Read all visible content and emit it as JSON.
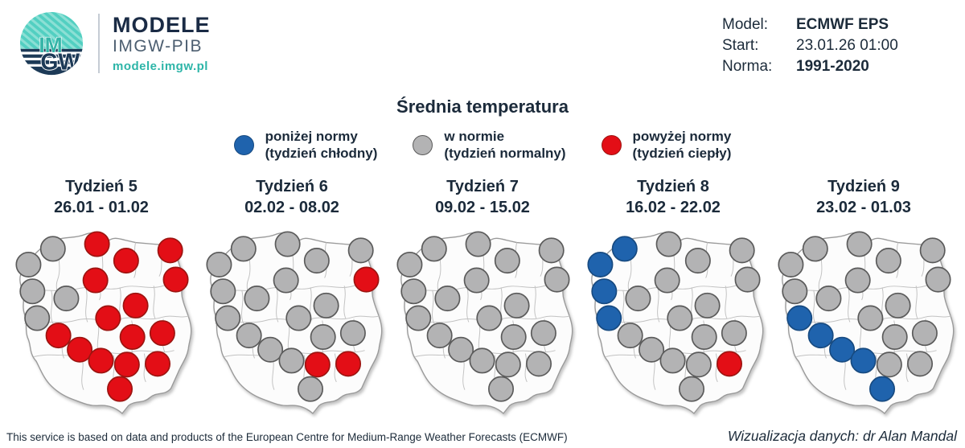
{
  "header": {
    "logo": {
      "letters_top": "IM",
      "letters_bottom": "GW",
      "brand": "MODELE",
      "subbrand": "IMGW-PIB",
      "url": "modele.imgw.pl",
      "teal": "#52cfc1",
      "navy": "#1d3a57"
    },
    "model_info": {
      "rows": [
        {
          "label": "Model:",
          "value": "ECMWF EPS"
        },
        {
          "label": "Start:",
          "value": "23.01.26 01:00"
        },
        {
          "label": "Norma:",
          "value": "1991-2020"
        }
      ]
    }
  },
  "title": "Średnia temperatura",
  "legend": [
    {
      "key": "below",
      "line1": "poniżej normy",
      "line2": "(tydzień chłodny)"
    },
    {
      "key": "normal",
      "line1": "w normie",
      "line2": "(tydzień normalny)"
    },
    {
      "key": "above",
      "line1": "powyżej normy",
      "line2": "(tydzień ciepły)"
    }
  ],
  "chart_data": {
    "type": "heatmap",
    "subtype": "categorical-map-dots",
    "title": "Średnia temperatura",
    "legend_entries": [
      "poniżej normy (tydzień chłodny)",
      "w normie (tydzień normalny)",
      "powyżej normy (tydzień ciepły)"
    ],
    "category_colors": {
      "below": {
        "fill": "#1f63ad",
        "stroke": "#174a80"
      },
      "normal": {
        "fill": "#b3b3b4",
        "stroke": "#5a5a5a"
      },
      "above": {
        "fill": "#e30e16",
        "stroke": "#9c1410"
      }
    },
    "dot_positions": [
      [
        27,
        55
      ],
      [
        58,
        35
      ],
      [
        114,
        29
      ],
      [
        151,
        50
      ],
      [
        207,
        37
      ],
      [
        214,
        74
      ],
      [
        112,
        75
      ],
      [
        32,
        89
      ],
      [
        75,
        98
      ],
      [
        38,
        123
      ],
      [
        128,
        123
      ],
      [
        163,
        107
      ],
      [
        65,
        145
      ],
      [
        159,
        147
      ],
      [
        197,
        142
      ],
      [
        92,
        163
      ],
      [
        119,
        177
      ],
      [
        152,
        182
      ],
      [
        191,
        181
      ],
      [
        143,
        213
      ]
    ],
    "weeks": [
      {
        "label": "Tydzień 5",
        "dates": "26.01 - 01.02",
        "values": [
          "normal",
          "normal",
          "above",
          "above",
          "above",
          "above",
          "above",
          "normal",
          "normal",
          "normal",
          "above",
          "above",
          "above",
          "above",
          "above",
          "above",
          "above",
          "above",
          "above",
          "above"
        ]
      },
      {
        "label": "Tydzień 6",
        "dates": "02.02 - 08.02",
        "values": [
          "normal",
          "normal",
          "normal",
          "normal",
          "normal",
          "above",
          "normal",
          "normal",
          "normal",
          "normal",
          "normal",
          "normal",
          "normal",
          "normal",
          "normal",
          "normal",
          "normal",
          "above",
          "above",
          "normal"
        ]
      },
      {
        "label": "Tydzień 7",
        "dates": "09.02 - 15.02",
        "values": [
          "normal",
          "normal",
          "normal",
          "normal",
          "normal",
          "normal",
          "normal",
          "normal",
          "normal",
          "normal",
          "normal",
          "normal",
          "normal",
          "normal",
          "normal",
          "normal",
          "normal",
          "normal",
          "normal",
          "normal"
        ]
      },
      {
        "label": "Tydzień 8",
        "dates": "16.02 - 22.02",
        "values": [
          "below",
          "below",
          "normal",
          "normal",
          "normal",
          "normal",
          "normal",
          "below",
          "normal",
          "below",
          "normal",
          "normal",
          "normal",
          "normal",
          "normal",
          "normal",
          "normal",
          "normal",
          "above",
          "normal"
        ]
      },
      {
        "label": "Tydzień 9",
        "dates": "23.02 - 01.03",
        "values": [
          "normal",
          "normal",
          "normal",
          "normal",
          "normal",
          "normal",
          "normal",
          "normal",
          "normal",
          "below",
          "normal",
          "normal",
          "below",
          "normal",
          "normal",
          "below",
          "below",
          "normal",
          "normal",
          "below"
        ]
      }
    ]
  },
  "footer": {
    "left": "This service is based on data and products of the European Centre for Medium-Range Weather Forecasts (ECMWF)",
    "right": "Wizualizacja danych: dr Alan Mandal"
  }
}
